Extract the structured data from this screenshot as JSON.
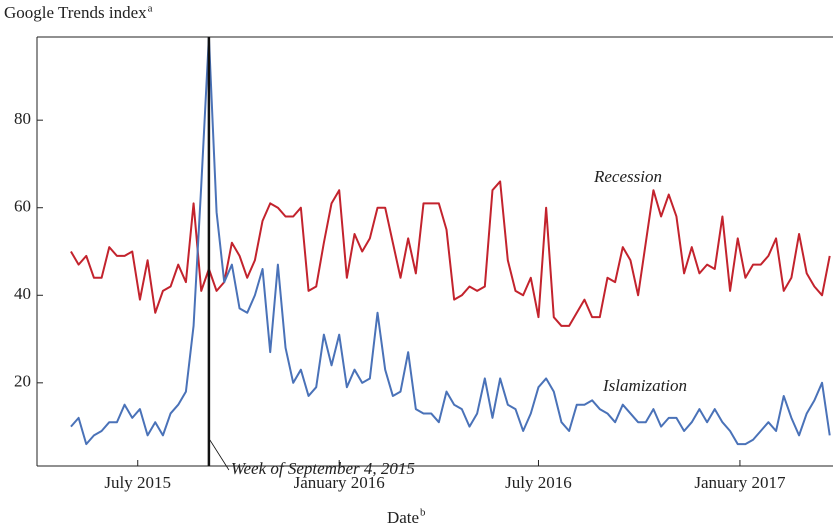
{
  "chart_data": {
    "type": "line",
    "y_label": "Google Trends index",
    "y_label_note": "a",
    "x_label": "Date",
    "x_label_note": "b",
    "x": [
      "2015-05-01",
      "2015-05-08",
      "2015-05-15",
      "2015-05-22",
      "2015-05-29",
      "2015-06-05",
      "2015-06-12",
      "2015-06-19",
      "2015-06-26",
      "2015-07-03",
      "2015-07-10",
      "2015-07-17",
      "2015-07-24",
      "2015-07-31",
      "2015-08-07",
      "2015-08-14",
      "2015-08-21",
      "2015-08-28",
      "2015-09-04",
      "2015-09-11",
      "2015-09-18",
      "2015-09-25",
      "2015-10-02",
      "2015-10-09",
      "2015-10-16",
      "2015-10-23",
      "2015-10-30",
      "2015-11-06",
      "2015-11-13",
      "2015-11-20",
      "2015-11-27",
      "2015-12-04",
      "2015-12-11",
      "2015-12-18",
      "2015-12-25",
      "2016-01-01",
      "2016-01-08",
      "2016-01-15",
      "2016-01-22",
      "2016-01-29",
      "2016-02-05",
      "2016-02-12",
      "2016-02-19",
      "2016-02-26",
      "2016-03-04",
      "2016-03-11",
      "2016-03-18",
      "2016-03-25",
      "2016-04-01",
      "2016-04-08",
      "2016-04-15",
      "2016-04-22",
      "2016-04-29",
      "2016-05-06",
      "2016-05-13",
      "2016-05-20",
      "2016-05-27",
      "2016-06-03",
      "2016-06-10",
      "2016-06-17",
      "2016-06-24",
      "2016-07-01",
      "2016-07-08",
      "2016-07-15",
      "2016-07-22",
      "2016-07-29",
      "2016-08-05",
      "2016-08-12",
      "2016-08-19",
      "2016-08-26",
      "2016-09-02",
      "2016-09-09",
      "2016-09-16",
      "2016-09-23",
      "2016-09-30",
      "2016-10-07",
      "2016-10-14",
      "2016-10-21",
      "2016-10-28",
      "2016-11-04",
      "2016-11-11",
      "2016-11-18",
      "2016-11-25",
      "2016-12-02",
      "2016-12-09",
      "2016-12-16",
      "2016-12-23",
      "2016-12-30",
      "2017-01-06",
      "2017-01-13",
      "2017-01-20",
      "2017-01-27",
      "2017-02-03",
      "2017-02-10",
      "2017-02-17",
      "2017-02-24",
      "2017-03-03",
      "2017-03-10",
      "2017-03-17",
      "2017-03-24"
    ],
    "series": [
      {
        "name": "Recession",
        "color": "#c3232d",
        "values": [
          50,
          47,
          49,
          44,
          44,
          51,
          49,
          49,
          50,
          39,
          48,
          36,
          41,
          42,
          47,
          43,
          61,
          41,
          46,
          41,
          43,
          52,
          49,
          44,
          48,
          57,
          61,
          60,
          58,
          58,
          60,
          41,
          42,
          52,
          61,
          64,
          44,
          54,
          50,
          53,
          60,
          60,
          52,
          44,
          53,
          45,
          61,
          61,
          61,
          55,
          39,
          40,
          42,
          41,
          42,
          64,
          66,
          48,
          41,
          40,
          44,
          35,
          60,
          35,
          33,
          33,
          36,
          39,
          35,
          35,
          44,
          43,
          51,
          48,
          40,
          52,
          64,
          58,
          63,
          58,
          45,
          51,
          45,
          47,
          46,
          58,
          41,
          53,
          44,
          47,
          47,
          49,
          53,
          41,
          44,
          54,
          45,
          42,
          40,
          49
        ]
      },
      {
        "name": "Islamization",
        "color": "#4a72b8",
        "values": [
          10,
          12,
          6,
          8,
          9,
          11,
          11,
          15,
          12,
          14,
          8,
          11,
          8,
          13,
          15,
          18,
          33,
          65,
          99,
          59,
          43,
          47,
          37,
          36,
          40,
          46,
          27,
          47,
          28,
          20,
          23,
          17,
          19,
          31,
          24,
          31,
          19,
          23,
          20,
          21,
          36,
          23,
          17,
          18,
          27,
          14,
          13,
          13,
          11,
          18,
          15,
          14,
          10,
          13,
          21,
          12,
          21,
          15,
          14,
          9,
          13,
          19,
          21,
          18,
          11,
          9,
          15,
          15,
          16,
          14,
          13,
          11,
          15,
          13,
          11,
          11,
          14,
          10,
          12,
          12,
          9,
          11,
          14,
          11,
          14,
          11,
          9,
          6,
          6,
          7,
          9,
          11,
          9,
          17,
          12,
          8,
          13,
          16,
          20,
          8
        ]
      }
    ],
    "annotation": {
      "text": "Week of September 4, 2015",
      "x": "2015-09-04"
    },
    "xlim": [
      "2015-03-31",
      "2017-03-27"
    ],
    "xticks": [
      {
        "value": "2015-07-01",
        "label": "July 2015"
      },
      {
        "value": "2016-01-01",
        "label": "January 2016"
      },
      {
        "value": "2016-07-01",
        "label": "July 2016"
      },
      {
        "value": "2017-01-01",
        "label": "January 2017"
      }
    ],
    "ylim": [
      1,
      99
    ],
    "yticks": [
      20,
      40,
      60,
      80
    ],
    "grid": false
  }
}
